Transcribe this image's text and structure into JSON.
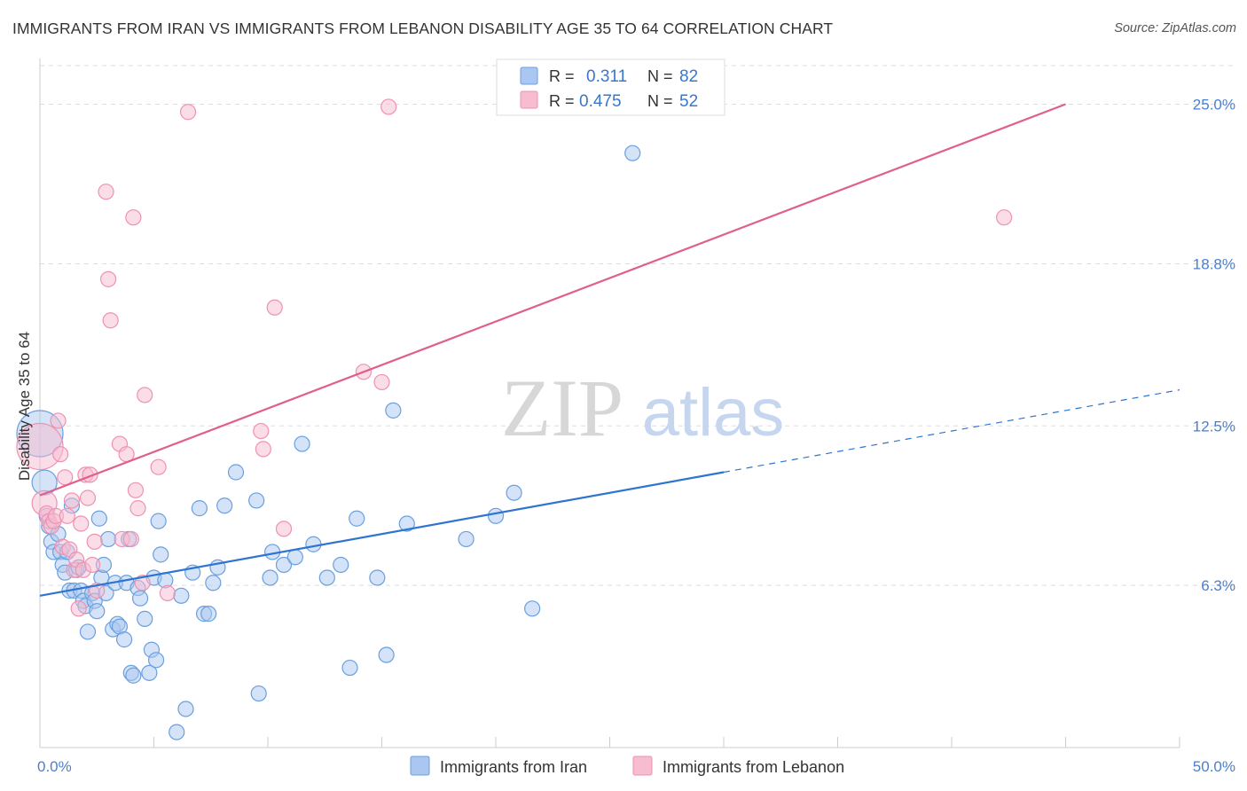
{
  "title": "IMMIGRANTS FROM IRAN VS IMMIGRANTS FROM LEBANON DISABILITY AGE 35 TO 64 CORRELATION CHART",
  "source": "Source: ZipAtlas.com",
  "watermark": {
    "zip": "ZIP",
    "atlas": "atlas"
  },
  "colors": {
    "iran_fill": "#a9c7f0",
    "iran_stroke": "#6a9fe0",
    "iran_line": "#2f74d0",
    "lebanon_fill": "#f7bcd0",
    "lebanon_stroke": "#ee92b0",
    "lebanon_line": "#e0608a",
    "tick_text": "#4a7fcf",
    "grid": "#dddddd"
  },
  "chart_data": {
    "type": "scatter",
    "xlabel": "",
    "ylabel": "Disability Age 35 to 64",
    "xlim": [
      0,
      50
    ],
    "ylim": [
      0,
      26.5
    ],
    "x_tick_labels": [
      {
        "value": 0,
        "label": "0.0%"
      },
      {
        "value": 50,
        "label": "50.0%"
      }
    ],
    "y_tick_labels": [
      {
        "value": 6.3,
        "label": "6.3%"
      },
      {
        "value": 12.5,
        "label": "12.5%"
      },
      {
        "value": 18.8,
        "label": "18.8%"
      },
      {
        "value": 25.0,
        "label": "25.0%"
      }
    ],
    "legend": {
      "entries": [
        {
          "r_label": "R =",
          "r_value": "0.311",
          "n_label": "N =",
          "n_value": "82"
        },
        {
          "r_label": "R =",
          "r_value": "0.475",
          "n_label": "N =",
          "n_value": "52"
        }
      ]
    },
    "series": [
      {
        "name": "Immigrants from Iran",
        "trend": {
          "x0": 0,
          "y0": 5.9,
          "x1": 30,
          "y1": 10.7,
          "dash_to_x": 50,
          "dash_to_y": 13.9
        },
        "points": [
          [
            0.0,
            12.2,
            "big"
          ],
          [
            0.2,
            10.3,
            "med"
          ],
          [
            0.3,
            9.0
          ],
          [
            0.4,
            8.6
          ],
          [
            0.5,
            8.0
          ],
          [
            0.6,
            7.6
          ],
          [
            0.8,
            8.3
          ],
          [
            0.9,
            7.6
          ],
          [
            1.0,
            7.1
          ],
          [
            1.1,
            6.8
          ],
          [
            1.2,
            7.6
          ],
          [
            1.3,
            6.1
          ],
          [
            1.4,
            9.4
          ],
          [
            1.5,
            6.1
          ],
          [
            1.6,
            6.9
          ],
          [
            1.7,
            7.0
          ],
          [
            1.8,
            6.1
          ],
          [
            1.9,
            5.7
          ],
          [
            2.0,
            5.5
          ],
          [
            2.1,
            4.5
          ],
          [
            2.3,
            6.0
          ],
          [
            2.4,
            5.7
          ],
          [
            2.5,
            5.3
          ],
          [
            2.6,
            8.9
          ],
          [
            2.7,
            6.6
          ],
          [
            2.8,
            7.1
          ],
          [
            2.9,
            6.0
          ],
          [
            3.0,
            8.1
          ],
          [
            3.2,
            4.6
          ],
          [
            3.3,
            6.4
          ],
          [
            3.4,
            4.8
          ],
          [
            3.5,
            4.7
          ],
          [
            3.7,
            4.2
          ],
          [
            3.8,
            6.4
          ],
          [
            3.9,
            8.1
          ],
          [
            4.0,
            2.9
          ],
          [
            4.1,
            2.8
          ],
          [
            4.3,
            6.2
          ],
          [
            4.4,
            5.8
          ],
          [
            4.6,
            5.0
          ],
          [
            4.8,
            2.9
          ],
          [
            4.9,
            3.8
          ],
          [
            5.0,
            6.6
          ],
          [
            5.1,
            3.4
          ],
          [
            5.2,
            8.8
          ],
          [
            5.3,
            7.5
          ],
          [
            5.5,
            6.5
          ],
          [
            6.0,
            0.6
          ],
          [
            6.2,
            5.9
          ],
          [
            6.4,
            1.5
          ],
          [
            6.7,
            6.8
          ],
          [
            7.0,
            9.3
          ],
          [
            7.2,
            5.2
          ],
          [
            7.4,
            5.2
          ],
          [
            7.6,
            6.4
          ],
          [
            7.8,
            7.0
          ],
          [
            8.1,
            9.4
          ],
          [
            8.6,
            10.7
          ],
          [
            9.5,
            9.6
          ],
          [
            9.6,
            2.1
          ],
          [
            10.1,
            6.6
          ],
          [
            10.2,
            7.6
          ],
          [
            10.7,
            7.1
          ],
          [
            11.2,
            7.4
          ],
          [
            11.5,
            11.8
          ],
          [
            12.0,
            7.9
          ],
          [
            12.6,
            6.6
          ],
          [
            13.2,
            7.1
          ],
          [
            13.6,
            3.1
          ],
          [
            13.9,
            8.9
          ],
          [
            14.8,
            6.6
          ],
          [
            15.2,
            3.6
          ],
          [
            15.5,
            13.1
          ],
          [
            16.1,
            8.7
          ],
          [
            18.7,
            8.1
          ],
          [
            20.0,
            9.0
          ],
          [
            20.8,
            9.9
          ],
          [
            21.6,
            5.4
          ],
          [
            26.0,
            23.1
          ]
        ]
      },
      {
        "name": "Immigrants from Lebanon",
        "trend": {
          "x0": 0,
          "y0": 9.8,
          "x1": 45,
          "y1": 25.0
        },
        "points": [
          [
            0.0,
            11.7,
            "big"
          ],
          [
            0.2,
            9.5,
            "med"
          ],
          [
            0.3,
            9.1
          ],
          [
            0.4,
            8.8
          ],
          [
            0.5,
            8.6
          ],
          [
            0.6,
            8.8
          ],
          [
            0.7,
            9.0
          ],
          [
            0.8,
            12.7
          ],
          [
            0.9,
            11.4
          ],
          [
            1.0,
            7.8
          ],
          [
            1.1,
            10.5
          ],
          [
            1.2,
            9.0
          ],
          [
            1.3,
            7.7
          ],
          [
            1.4,
            9.6
          ],
          [
            1.5,
            6.9
          ],
          [
            1.6,
            7.3
          ],
          [
            1.7,
            5.4
          ],
          [
            1.8,
            8.7
          ],
          [
            1.9,
            6.9
          ],
          [
            2.0,
            10.6
          ],
          [
            2.1,
            9.7
          ],
          [
            2.2,
            10.6
          ],
          [
            2.3,
            7.1
          ],
          [
            2.4,
            8.0
          ],
          [
            2.5,
            6.1
          ],
          [
            2.9,
            21.6
          ],
          [
            3.0,
            18.2
          ],
          [
            3.1,
            16.6
          ],
          [
            3.5,
            11.8
          ],
          [
            3.6,
            8.1
          ],
          [
            3.8,
            11.4
          ],
          [
            4.0,
            8.1
          ],
          [
            4.1,
            20.6
          ],
          [
            4.2,
            10.0
          ],
          [
            4.3,
            9.3
          ],
          [
            4.5,
            6.4
          ],
          [
            4.6,
            13.7
          ],
          [
            5.2,
            10.9
          ],
          [
            5.6,
            6.0
          ],
          [
            6.5,
            24.7
          ],
          [
            9.7,
            12.3
          ],
          [
            9.8,
            11.6
          ],
          [
            10.3,
            17.1
          ],
          [
            10.7,
            8.5
          ],
          [
            14.2,
            14.6
          ],
          [
            15.0,
            14.2
          ],
          [
            15.3,
            24.9
          ],
          [
            42.3,
            20.6
          ]
        ]
      }
    ]
  },
  "bottom_legend": [
    "Immigrants from Iran",
    "Immigrants from Lebanon"
  ]
}
